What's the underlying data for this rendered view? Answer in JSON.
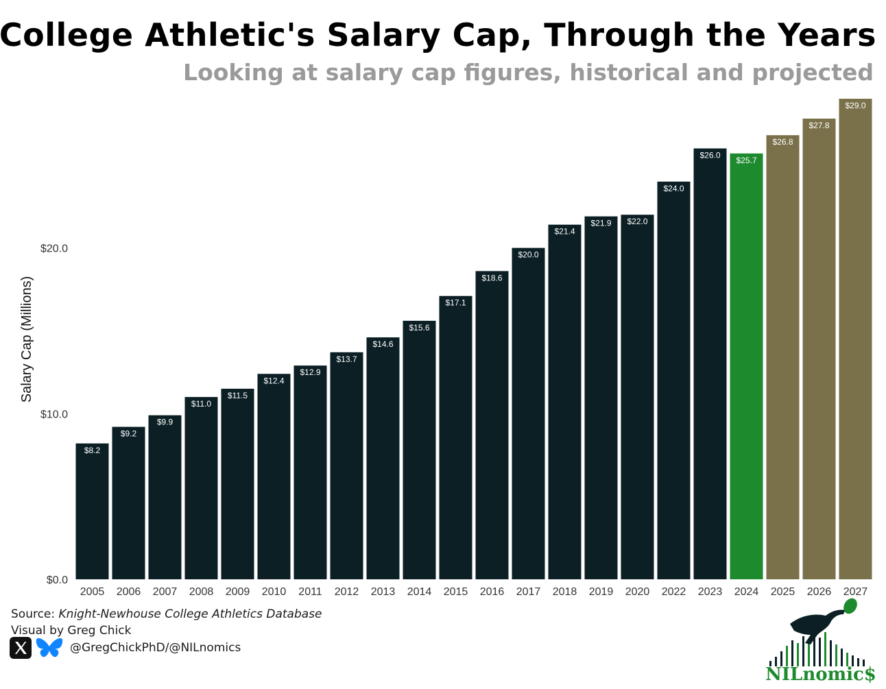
{
  "chart_data": {
    "type": "bar",
    "title": "College Athletic's Salary Cap, Through the Years",
    "subtitle": "Looking at salary cap figures, historical and projected",
    "ylabel": "Salary Cap (Millions)",
    "xlabel": "",
    "ylim": [
      0,
      29
    ],
    "yticks": [
      0,
      10,
      20
    ],
    "ytick_labels": [
      "$0.0",
      "$10.0",
      "$20.0"
    ],
    "categories": [
      "2005",
      "2006",
      "2007",
      "2008",
      "2009",
      "2010",
      "2011",
      "2012",
      "2013",
      "2014",
      "2015",
      "2016",
      "2017",
      "2018",
      "2019",
      "2020",
      "2022",
      "2023",
      "2024",
      "2025",
      "2026",
      "2027"
    ],
    "values": [
      8.2,
      9.2,
      9.9,
      11.0,
      11.5,
      12.4,
      12.9,
      13.7,
      14.6,
      15.6,
      17.1,
      18.6,
      20.0,
      21.4,
      21.9,
      22.0,
      24.0,
      26.0,
      25.7,
      26.8,
      27.8,
      29.0
    ],
    "value_labels": [
      "$8.2",
      "$9.2",
      "$9.9",
      "$11.0",
      "$11.5",
      "$12.4",
      "$12.9",
      "$13.7",
      "$14.6",
      "$15.6",
      "$17.1",
      "$18.6",
      "$20.0",
      "$21.4",
      "$21.9",
      "$22.0",
      "$24.0",
      "$26.0",
      "$25.7",
      "$26.8",
      "$27.8",
      "$29.0"
    ],
    "bar_colors": [
      "#0b1f24",
      "#0b1f24",
      "#0b1f24",
      "#0b1f24",
      "#0b1f24",
      "#0b1f24",
      "#0b1f24",
      "#0b1f24",
      "#0b1f24",
      "#0b1f24",
      "#0b1f24",
      "#0b1f24",
      "#0b1f24",
      "#0b1f24",
      "#0b1f24",
      "#0b1f24",
      "#0b1f24",
      "#0b1f24",
      "#1e8a2e",
      "#7a714b",
      "#7a714b",
      "#7a714b"
    ],
    "grid": false,
    "legend": "none"
  },
  "footer": {
    "source_prefix": "Source: ",
    "source_name": "Knight-Newhouse College Athletics Database",
    "visual_by": "Visual by Greg Chick",
    "handle": "@GregChickPhD/@NILnomics"
  },
  "logo": {
    "text": "NILnomic$",
    "colors": {
      "dark": "#0b1f24",
      "green": "#1e8a2e"
    }
  },
  "icons": [
    "x-logo-icon",
    "bluesky-butterfly-icon"
  ]
}
